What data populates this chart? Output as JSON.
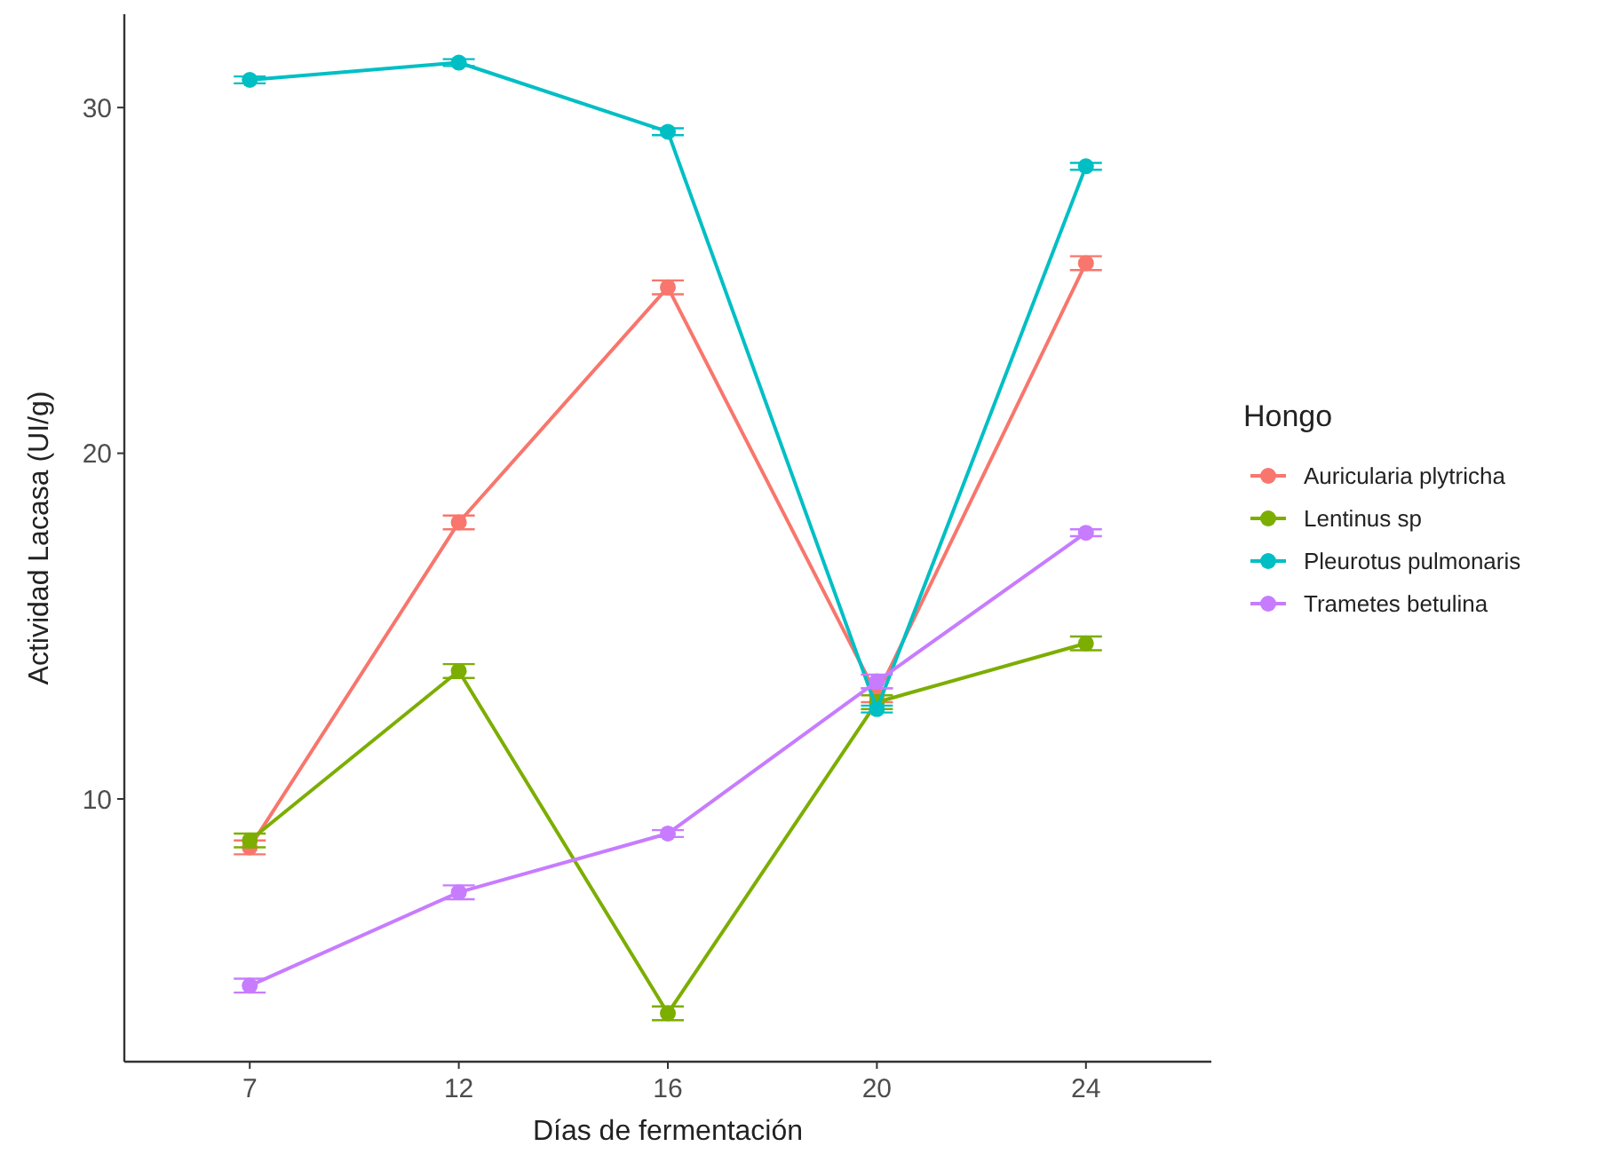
{
  "chart_data": {
    "type": "line",
    "xlabel": "Días de fermentación",
    "ylabel": "Actividad Lacasa (UI/g)",
    "legend_title": "Hongo",
    "legend": "right",
    "marker": "circle",
    "grid": false,
    "categories": [
      "7",
      "12",
      "16",
      "20",
      "24"
    ],
    "ylim": [
      2.4,
      32.7
    ],
    "yticks": [
      10,
      20,
      30
    ],
    "series": [
      {
        "name": "Auricularia plytricha",
        "color": "#f8766d",
        "values": [
          8.6,
          18.0,
          24.8,
          13.0,
          25.5
        ],
        "errors": [
          0.2,
          0.2,
          0.2,
          0.2,
          0.2
        ]
      },
      {
        "name": "Lentinus sp",
        "color": "#7cae00",
        "values": [
          8.8,
          13.7,
          3.8,
          12.8,
          14.5
        ],
        "errors": [
          0.2,
          0.2,
          0.2,
          0.2,
          0.2
        ]
      },
      {
        "name": "Pleurotus pulmonaris",
        "color": "#00bfc4",
        "values": [
          30.8,
          31.3,
          29.3,
          12.6,
          28.3
        ],
        "errors": [
          0.1,
          0.1,
          0.1,
          0.1,
          0.1
        ]
      },
      {
        "name": "Trametes betulina",
        "color": "#c77cff",
        "values": [
          4.6,
          7.3,
          9.0,
          13.4,
          17.7
        ],
        "errors": [
          0.2,
          0.2,
          0.1,
          0.2,
          0.1
        ]
      }
    ]
  }
}
